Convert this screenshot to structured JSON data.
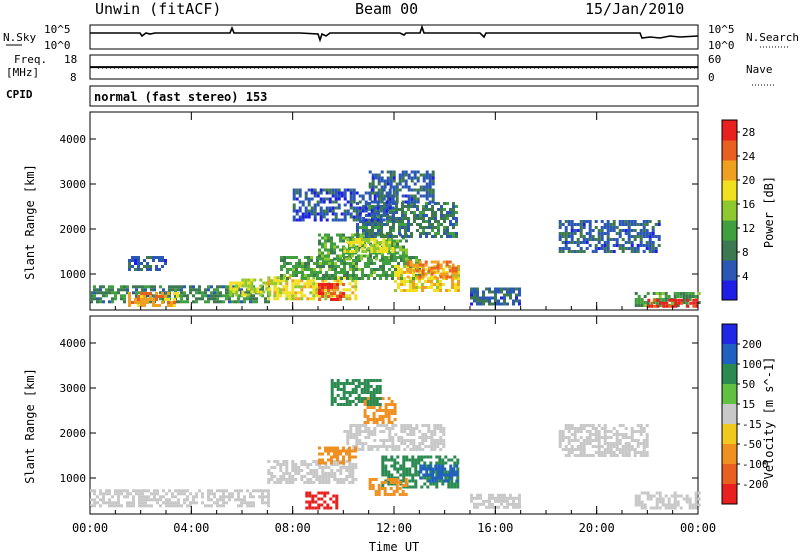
{
  "header": {
    "radar": "Unwin (fitACF)",
    "beam": "Beam 00",
    "date": "15/Jan/2010"
  },
  "noise_panel": {
    "left_label": "N.Sky",
    "right_label": "N.Search",
    "left_ticks": [
      "10^5",
      "10^0"
    ],
    "right_ticks": [
      "10^5",
      "10^0"
    ]
  },
  "freq_panel": {
    "left_label_1": "Freq.",
    "left_label_2": "[MHz]",
    "right_label": "Nave",
    "left_ticks": [
      "18",
      "8"
    ],
    "right_ticks": [
      "60",
      "0"
    ],
    "freq_value": 12.9,
    "nave_value": 27
  },
  "cpid": {
    "label": "CPID",
    "program": "normal (fast stereo) 153"
  },
  "colors": {
    "power_scale": [
      "#1e1ee6",
      "#2a58b4",
      "#3c7850",
      "#40a040",
      "#90c830",
      "#f0e020",
      "#f0a020",
      "#e86020",
      "#e82020"
    ],
    "velocity_scale": [
      "#1e28e6",
      "#2060c0",
      "#2a8a50",
      "#60c040",
      "#c8c8c8",
      "#f0c820",
      "#f09020",
      "#e86020",
      "#e82020"
    ],
    "ground_scatter": "#c8c8c8"
  },
  "chart_data": [
    {
      "type": "heatmap",
      "name": "power",
      "ylabel": "Slant Range [km]",
      "xlabel": "",
      "x_ticks": [
        "00:00",
        "04:00",
        "08:00",
        "12:00",
        "16:00",
        "20:00",
        "00:00"
      ],
      "y_ticks": [
        "1000",
        "2000",
        "3000",
        "4000"
      ],
      "ylim": [
        200,
        4600
      ],
      "xlim_hours": [
        0,
        24
      ],
      "colorbar": {
        "label": "Power [dB]",
        "ticks": [
          "4",
          "8",
          "12",
          "16",
          "20",
          "24",
          "28"
        ],
        "range": [
          0,
          30
        ]
      },
      "regions": [
        {
          "t0": 0.0,
          "t1": 7.0,
          "r0": 350,
          "r1": 750,
          "v": 9
        },
        {
          "t0": 1.5,
          "t1": 3.5,
          "r0": 300,
          "r1": 600,
          "v": 22
        },
        {
          "t0": 5.5,
          "t1": 7.5,
          "r0": 500,
          "r1": 900,
          "v": 17
        },
        {
          "t0": 7.0,
          "t1": 10.5,
          "r0": 450,
          "r1": 950,
          "v": 18
        },
        {
          "t0": 9.0,
          "t1": 10.0,
          "r0": 400,
          "r1": 800,
          "v": 26
        },
        {
          "t0": 7.5,
          "t1": 13.0,
          "r0": 900,
          "r1": 1400,
          "v": 11
        },
        {
          "t0": 9.0,
          "t1": 12.5,
          "r0": 1300,
          "r1": 1900,
          "v": 12
        },
        {
          "t0": 10.0,
          "t1": 12.0,
          "r0": 1500,
          "r1": 1800,
          "v": 17
        },
        {
          "t0": 10.5,
          "t1": 14.5,
          "r0": 1800,
          "r1": 2600,
          "v": 8
        },
        {
          "t0": 11.0,
          "t1": 13.5,
          "r0": 2600,
          "r1": 3300,
          "v": 6
        },
        {
          "t0": 12.0,
          "t1": 14.5,
          "r0": 600,
          "r1": 1200,
          "v": 19
        },
        {
          "t0": 12.5,
          "t1": 14.5,
          "r0": 900,
          "r1": 1300,
          "v": 23
        },
        {
          "t0": 8.0,
          "t1": 12.0,
          "r0": 2200,
          "r1": 2900,
          "v": 5
        },
        {
          "t0": 1.5,
          "t1": 3.0,
          "r0": 1100,
          "r1": 1400,
          "v": 6
        },
        {
          "t0": 15.0,
          "t1": 17.0,
          "r0": 350,
          "r1": 700,
          "v": 6
        },
        {
          "t0": 18.5,
          "t1": 22.5,
          "r0": 1500,
          "r1": 2200,
          "v": 6
        },
        {
          "t0": 21.5,
          "t1": 24.0,
          "r0": 300,
          "r1": 600,
          "v": 11
        },
        {
          "t0": 22.0,
          "t1": 24.0,
          "r0": 250,
          "r1": 450,
          "v": 29
        }
      ]
    },
    {
      "type": "heatmap",
      "name": "velocity",
      "ylabel": "Slant Range [km]",
      "xlabel": "Time UT",
      "x_ticks": [
        "00:00",
        "04:00",
        "08:00",
        "12:00",
        "16:00",
        "20:00",
        "00:00"
      ],
      "y_ticks": [
        "1000",
        "2000",
        "3000",
        "4000"
      ],
      "ylim": [
        200,
        4600
      ],
      "xlim_hours": [
        0,
        24
      ],
      "colorbar": {
        "label": "Velocity [m s^-1]",
        "ticks": [
          "200",
          "100",
          "50",
          "15",
          "-15",
          "-50",
          "-100",
          "-200"
        ],
        "range": [
          -250,
          250
        ]
      },
      "regions": [
        {
          "t0": 0.0,
          "t1": 7.0,
          "r0": 350,
          "r1": 750,
          "v": 0
        },
        {
          "t0": 7.0,
          "t1": 10.5,
          "r0": 900,
          "r1": 1400,
          "v": 0
        },
        {
          "t0": 10.0,
          "t1": 14.0,
          "r0": 1600,
          "r1": 2200,
          "v": 0
        },
        {
          "t0": 9.0,
          "t1": 10.5,
          "r0": 1300,
          "r1": 1700,
          "v": -60
        },
        {
          "t0": 8.5,
          "t1": 9.8,
          "r0": 300,
          "r1": 700,
          "v": -200
        },
        {
          "t0": 10.8,
          "t1": 12.0,
          "r0": 2200,
          "r1": 2800,
          "v": -60
        },
        {
          "t0": 9.5,
          "t1": 11.5,
          "r0": 2600,
          "r1": 3200,
          "v": 50
        },
        {
          "t0": 11.5,
          "t1": 14.5,
          "r0": 800,
          "r1": 1500,
          "v": 40
        },
        {
          "t0": 13.0,
          "t1": 14.5,
          "r0": 900,
          "r1": 1300,
          "v": 80
        },
        {
          "t0": 11.0,
          "t1": 12.5,
          "r0": 600,
          "r1": 1000,
          "v": -70
        },
        {
          "t0": 18.5,
          "t1": 22.0,
          "r0": 1500,
          "r1": 2200,
          "v": 0
        },
        {
          "t0": 15.0,
          "t1": 17.0,
          "r0": 350,
          "r1": 650,
          "v": 0
        },
        {
          "t0": 21.5,
          "t1": 24.0,
          "r0": 300,
          "r1": 700,
          "v": 0
        }
      ]
    }
  ]
}
